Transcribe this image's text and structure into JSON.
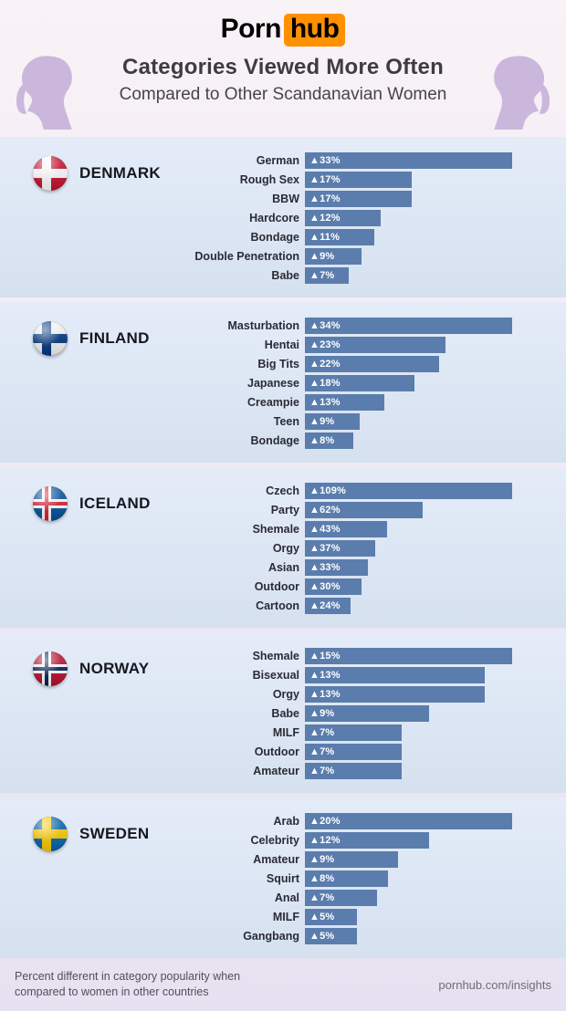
{
  "page": {
    "header": {
      "logo_part1": "Porn",
      "logo_part2": "hub",
      "title": "Categories Viewed More Often",
      "subtitle": "Compared to Other Scandanavian Women"
    },
    "footer": {
      "note_line1": "Percent different in category popularity when",
      "note_line2": "compared to women in other countries",
      "site": "pornhub.com/insights"
    },
    "up_arrow": "▲"
  },
  "colors": {
    "bar": "#5b7dad",
    "bar_text": "#ffffff",
    "logo_orange": "#ff9000",
    "silhouette": "#cbb7db",
    "section_top": "#e4ecf8",
    "section_bottom": "#d6e1f0"
  },
  "chart_data": [
    {
      "type": "bar",
      "orientation": "horizontal",
      "country": "DENMARK",
      "unit": "%",
      "flag": {
        "bg": "#c8102e",
        "cross": "#ffffff",
        "inner": null
      },
      "categories": [
        "German",
        "Rough Sex",
        "BBW",
        "Hardcore",
        "Bondage",
        "Double Penetration",
        "Babe"
      ],
      "values": [
        33,
        17,
        17,
        12,
        11,
        9,
        7
      ],
      "xlim": [
        0,
        33
      ]
    },
    {
      "type": "bar",
      "orientation": "horizontal",
      "country": "FINLAND",
      "unit": "%",
      "flag": {
        "bg": "#f5f6f5",
        "cross": "#003580",
        "inner": null
      },
      "categories": [
        "Masturbation",
        "Hentai",
        "Big Tits",
        "Japanese",
        "Creampie",
        "Teen",
        "Bondage"
      ],
      "values": [
        34,
        23,
        22,
        18,
        13,
        9,
        8
      ],
      "xlim": [
        0,
        34
      ]
    },
    {
      "type": "bar",
      "orientation": "horizontal",
      "country": "ICELAND",
      "unit": "%",
      "flag": {
        "bg": "#02529c",
        "cross": "#ffffff",
        "inner": "#dc1e35"
      },
      "categories": [
        "Czech",
        "Party",
        "Shemale",
        "Orgy",
        "Asian",
        "Outdoor",
        "Cartoon"
      ],
      "values": [
        109,
        62,
        43,
        37,
        33,
        30,
        24
      ],
      "xlim": [
        0,
        109
      ]
    },
    {
      "type": "bar",
      "orientation": "horizontal",
      "country": "NORWAY",
      "unit": "%",
      "flag": {
        "bg": "#ba0c2f",
        "cross": "#ffffff",
        "inner": "#00205b"
      },
      "categories": [
        "Shemale",
        "Bisexual",
        "Orgy",
        "Babe",
        "MILF",
        "Outdoor",
        "Amateur"
      ],
      "values": [
        15,
        13,
        13,
        9,
        7,
        7,
        7
      ],
      "xlim": [
        0,
        15
      ]
    },
    {
      "type": "bar",
      "orientation": "horizontal",
      "country": "SWEDEN",
      "unit": "%",
      "flag": {
        "bg": "#0064ad",
        "cross": "#fecb00",
        "inner": null
      },
      "categories": [
        "Arab",
        "Celebrity",
        "Amateur",
        "Squirt",
        "Anal",
        "MILF",
        "Gangbang"
      ],
      "values": [
        20,
        12,
        9,
        8,
        7,
        5,
        5
      ],
      "xlim": [
        0,
        20
      ]
    }
  ]
}
